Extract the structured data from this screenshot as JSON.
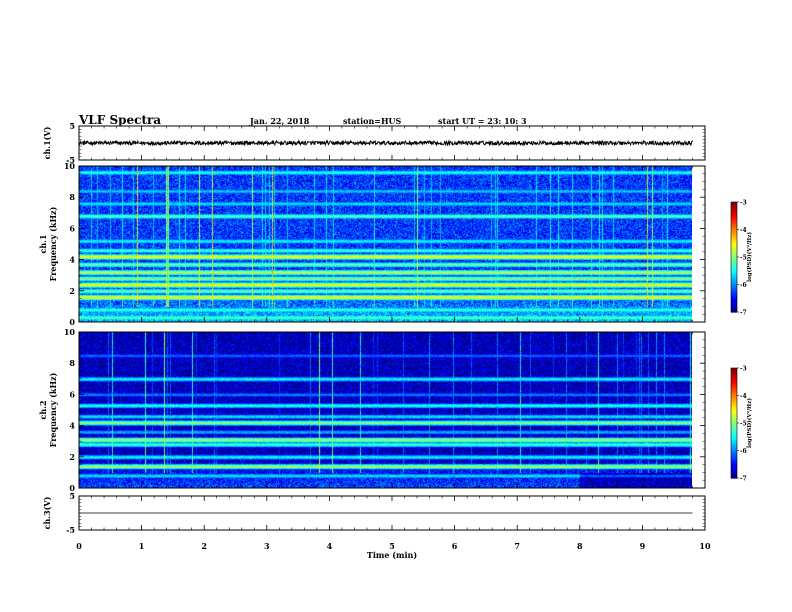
{
  "header": {
    "title": "VLF Spectra",
    "date": "Jan. 22, 2018",
    "station": "station=HUS",
    "start": "start UT =  23: 10: 3"
  },
  "chart_data": {
    "type": "heatmap",
    "xlabel": "Time (min)",
    "xlim": [
      0,
      10
    ],
    "x_ticks": [
      "0",
      "1",
      "2",
      "3",
      "4",
      "5",
      "6",
      "7",
      "8",
      "9",
      "10"
    ],
    "panels": [
      {
        "id": "ch1-voltage",
        "type": "line",
        "ylabel": "ch.1(V)",
        "ylim": [
          -5,
          5
        ],
        "y_ticks": [
          "5",
          "-5"
        ],
        "mean": 0.0,
        "noise": 0.6
      },
      {
        "id": "ch1-spectrogram",
        "type": "heatmap",
        "ylabel_top": "ch.1",
        "ylabel": "Frequency (kHz)",
        "ylim": [
          0,
          10
        ],
        "y_ticks": [
          "0",
          "2",
          "4",
          "6",
          "8",
          "10"
        ],
        "time_max_min": 9.8,
        "background_level": -6.3,
        "bands_khz": [
          {
            "f": 0.3,
            "level": -5.2
          },
          {
            "f": 0.8,
            "level": -5.3
          },
          {
            "f": 1.6,
            "level": -4.6
          },
          {
            "f": 2.0,
            "level": -5.1
          },
          {
            "f": 2.4,
            "level": -4.6
          },
          {
            "f": 2.8,
            "level": -5.0
          },
          {
            "f": 3.2,
            "level": -4.8
          },
          {
            "f": 3.7,
            "level": -5.1
          },
          {
            "f": 4.2,
            "level": -4.6
          },
          {
            "f": 4.6,
            "level": -5.3
          },
          {
            "f": 5.2,
            "level": -5.5
          },
          {
            "f": 6.8,
            "level": -5.2
          },
          {
            "f": 7.6,
            "level": -5.6
          },
          {
            "f": 8.4,
            "level": -5.7
          },
          {
            "f": 9.6,
            "level": -5.4
          }
        ],
        "colorbar": {
          "label": "log(PSD)(V²/Hz)",
          "range": [
            -7,
            -3
          ],
          "ticks": [
            "-3",
            "-4",
            "-5",
            "-6",
            "-7"
          ]
        }
      },
      {
        "id": "ch2-spectrogram",
        "type": "heatmap",
        "ylabel_top": "ch.2",
        "ylabel": "Frequency (kHz)",
        "ylim": [
          0,
          10
        ],
        "y_ticks": [
          "0",
          "2",
          "4",
          "6",
          "8",
          "10"
        ],
        "time_max_min": 9.8,
        "background_level": -6.8,
        "bands_khz": [
          {
            "f": 0.8,
            "level": -5.6
          },
          {
            "f": 1.4,
            "level": -4.9
          },
          {
            "f": 2.0,
            "level": -5.5
          },
          {
            "f": 2.8,
            "level": -5.3
          },
          {
            "f": 3.1,
            "level": -4.9
          },
          {
            "f": 3.6,
            "level": -5.8
          },
          {
            "f": 4.2,
            "level": -5.0
          },
          {
            "f": 4.6,
            "level": -5.6
          },
          {
            "f": 5.3,
            "level": -5.4
          },
          {
            "f": 6.0,
            "level": -6.0
          },
          {
            "f": 7.0,
            "level": -5.5
          },
          {
            "f": 8.5,
            "level": -6.1
          }
        ],
        "colorbar": {
          "label": "log(PSD)(V²/Hz)",
          "range": [
            -7,
            -3
          ],
          "ticks": [
            "-3",
            "-4",
            "-5",
            "-6",
            "-7"
          ]
        }
      },
      {
        "id": "ch3-voltage",
        "type": "line",
        "ylabel": "ch.3(V)",
        "ylim": [
          -5,
          5
        ],
        "y_ticks": [
          "5",
          "-5"
        ],
        "mean": 0.0,
        "noise": 0.0
      }
    ]
  }
}
